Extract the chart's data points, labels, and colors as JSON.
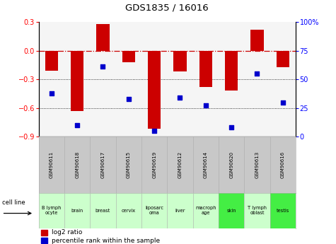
{
  "title": "GDS1835 / 16016",
  "samples": [
    "GSM90611",
    "GSM90618",
    "GSM90617",
    "GSM90615",
    "GSM90619",
    "GSM90612",
    "GSM90614",
    "GSM90620",
    "GSM90613",
    "GSM90616"
  ],
  "cell_lines": [
    "B lymph\nocyte",
    "brain",
    "breast",
    "cervix",
    "liposarc\noma",
    "liver",
    "macroph\nage",
    "skin",
    "T lymph\noblast",
    "testis"
  ],
  "cell_line_colors": [
    "#ccffcc",
    "#ccffcc",
    "#ccffcc",
    "#ccffcc",
    "#ccffcc",
    "#ccffcc",
    "#ccffcc",
    "#44ee44",
    "#ccffcc",
    "#44ee44"
  ],
  "log2_ratio": [
    -0.21,
    -0.63,
    0.28,
    -0.12,
    -0.82,
    -0.22,
    -0.38,
    -0.42,
    0.22,
    -0.17
  ],
  "percentile_rank": [
    38,
    10,
    61,
    33,
    5,
    34,
    27,
    8,
    55,
    30
  ],
  "ylim_left": [
    -0.9,
    0.3
  ],
  "ylim_right": [
    0,
    100
  ],
  "bar_color": "#cc0000",
  "dot_color": "#0000cc",
  "hline_color": "#cc0000",
  "dotline_color": "#000000",
  "background_color": "#ffffff",
  "gsm_bg_color": "#c8c8c8",
  "plot_bg_color": "#f5f5f5"
}
